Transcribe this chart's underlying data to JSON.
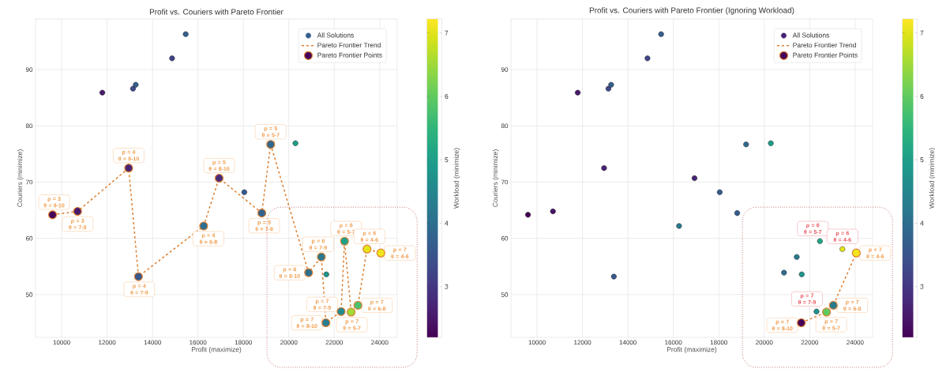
{
  "chart_data": [
    {
      "type": "scatter",
      "title": "Profit vs. Couriers with Pareto Frontier",
      "xlabel": "Profit (maximize)",
      "ylabel": "Couriers (minimize)",
      "clabel": "Workload (minimize)",
      "xlim": [
        8850,
        24770
      ],
      "ylim": [
        42.4,
        99
      ],
      "xticks": [
        10000,
        12000,
        14000,
        16000,
        18000,
        20000,
        22000,
        24000
      ],
      "yticks": [
        50,
        60,
        70,
        80,
        90
      ],
      "clim": [
        2.2,
        7.22
      ],
      "cticks": [
        3,
        4,
        5,
        6,
        7
      ],
      "grid": true,
      "legend": "top right",
      "series": [
        {
          "name": "All Solutions",
          "type": "scatter",
          "x": [
            11790,
            13140,
            13260,
            14860,
            15460,
            18040,
            20290,
            21650
          ],
          "values": [
            85.9,
            86.6,
            87.3,
            92.0,
            96.3,
            68.2,
            76.9,
            53.6
          ],
          "colors": [
            "#481a6c",
            "#3e4a89",
            "#355f8d",
            "#414487",
            "#355f8d",
            "#365c8d",
            "#1f9e89",
            "#1f958b"
          ]
        },
        {
          "name": "Pareto Frontier Trend",
          "type": "line",
          "color": "#dd8033",
          "line_style": "dashed",
          "x": [
            9600,
            10700,
            12950,
            13380,
            16250,
            16930,
            18810,
            19200,
            20870,
            21430,
            21630,
            22300,
            22450,
            22740,
            23040,
            23440,
            24050
          ],
          "values": [
            64.2,
            64.8,
            72.5,
            53.2,
            62.2,
            70.7,
            64.5,
            76.7,
            53.9,
            56.7,
            45.0,
            47.0,
            59.5,
            46.9,
            48.1,
            58.1,
            57.4
          ]
        },
        {
          "name": "Pareto Frontier Points",
          "type": "scatter",
          "x": [
            9600,
            10700,
            12950,
            13380,
            16250,
            16930,
            18810,
            19200,
            20870,
            21430,
            21630,
            22300,
            22450,
            22740,
            23040,
            23440,
            24050
          ],
          "values": [
            64.2,
            64.8,
            72.5,
            53.2,
            62.2,
            70.7,
            64.5,
            76.7,
            53.9,
            56.7,
            45.0,
            47.0,
            59.5,
            46.9,
            48.1,
            58.1,
            57.4
          ],
          "colors": [
            "#450559",
            "#481a6c",
            "#482475",
            "#38588c",
            "#2e6e8e",
            "#472c7a",
            "#33638d",
            "#31688e",
            "#2e6e8e",
            "#2a788e",
            "#297b8e",
            "#23898e",
            "#1fa188",
            "#a2da37",
            "#4ac16d",
            "#e5e419",
            "#f1e51d"
          ]
        }
      ],
      "annotations": [
        {
          "text": "ρ = 3\nθ = 8-10",
          "x": 9600,
          "y": 64.2
        },
        {
          "text": "ρ = 3\nθ = 7-9",
          "x": 10700,
          "y": 64.8
        },
        {
          "text": "ρ = 4\nθ = 8-10",
          "x": 12950,
          "y": 72.5
        },
        {
          "text": "ρ = 4\nθ = 7-9",
          "x": 13380,
          "y": 53.2
        },
        {
          "text": "ρ = 4\nθ = 6-8",
          "x": 16250,
          "y": 62.2
        },
        {
          "text": "ρ = 5\nθ = 8-10",
          "x": 16930,
          "y": 70.7
        },
        {
          "text": "ρ = 5\nθ = 7-9",
          "x": 18810,
          "y": 64.5
        },
        {
          "text": "ρ = 5\nθ = 5-7",
          "x": 19200,
          "y": 76.7
        },
        {
          "text": "ρ = 6\nθ = 8-10",
          "x": 20870,
          "y": 53.9
        },
        {
          "text": "ρ = 6\nθ = 7-9",
          "x": 21430,
          "y": 56.7
        },
        {
          "text": "ρ = 7\nθ = 8-10",
          "x": 21630,
          "y": 45.0
        },
        {
          "text": "ρ = 7\nθ = 7-9",
          "x": 22300,
          "y": 47.0
        },
        {
          "text": "ρ = 6\nθ = 5-7",
          "x": 22450,
          "y": 59.5
        },
        {
          "text": "ρ = 7\nθ = 5-7",
          "x": 22740,
          "y": 46.9
        },
        {
          "text": "ρ = 7\nθ = 6-8",
          "x": 23040,
          "y": 48.1
        },
        {
          "text": "ρ = 6\nθ = 4-6",
          "x": 23440,
          "y": 58.1
        },
        {
          "text": "ρ = 7\nθ = 4-6",
          "x": 24050,
          "y": 57.4
        }
      ]
    },
    {
      "type": "scatter",
      "title": "Profit vs. Couriers with Pareto Frontier (Ignoring Workload)",
      "xlabel": "Profit (maximize)",
      "ylabel": "Couriers (minimize)",
      "clabel": "Workload (minimize)",
      "xlim": [
        8850,
        24770
      ],
      "ylim": [
        42.4,
        99
      ],
      "xticks": [
        10000,
        12000,
        14000,
        16000,
        18000,
        20000,
        22000,
        24000
      ],
      "yticks": [
        50,
        60,
        70,
        80,
        90
      ],
      "clim": [
        2.2,
        7.22
      ],
      "cticks": [
        3,
        4,
        5,
        6,
        7
      ],
      "grid": true,
      "legend": "top right",
      "series": [
        {
          "name": "All Solutions",
          "type": "scatter",
          "x": [
            9600,
            10700,
            11790,
            12950,
            13140,
            13260,
            13380,
            14860,
            15460,
            16250,
            16930,
            18040,
            18810,
            19200,
            20290,
            20870,
            21430,
            21650,
            22300,
            22450,
            23440
          ],
          "values": [
            64.2,
            64.8,
            85.9,
            72.5,
            86.6,
            87.3,
            53.2,
            92.0,
            96.3,
            62.2,
            70.7,
            68.2,
            64.5,
            76.7,
            76.9,
            53.9,
            56.7,
            53.6,
            47.0,
            59.5,
            58.1
          ],
          "colors": [
            "#440154",
            "#471365",
            "#481a6c",
            "#482475",
            "#3e4a89",
            "#355f8d",
            "#38588c",
            "#414487",
            "#355f8d",
            "#2a788e",
            "#482475",
            "#365c8d",
            "#365c8d",
            "#31688e",
            "#1f9e89",
            "#2e6e8e",
            "#297b8e",
            "#1f958b",
            "#21918c",
            "#22a884",
            "#e5e419"
          ]
        },
        {
          "name": "Pareto Frontier Trend",
          "type": "line",
          "color": "#dd8033",
          "line_style": "dashed",
          "x": [
            21630,
            22740,
            23040,
            24050
          ],
          "values": [
            45.0,
            46.9,
            48.1,
            57.4
          ]
        },
        {
          "name": "Pareto Frontier Points",
          "type": "scatter",
          "x": [
            21630,
            22740,
            23040,
            24050
          ],
          "values": [
            45.0,
            46.9,
            48.1,
            57.4
          ],
          "colors": [
            "#450559",
            "#60ca60",
            "#297b8e",
            "#f1e51d"
          ]
        }
      ],
      "annotations": [
        {
          "text": "ρ = 6\nθ = 5-7",
          "x": 22450,
          "y": 59.5
        },
        {
          "text": "ρ = 6\nθ = 4-6",
          "x": 23440,
          "y": 58.1
        },
        {
          "text": "ρ = 7\nθ = 4-6",
          "x": 24050,
          "y": 57.4
        },
        {
          "text": "ρ = 7\nθ = 7-9",
          "x": 22300,
          "y": 47.0
        },
        {
          "text": "ρ = 7\nθ = 6-8",
          "x": 23040,
          "y": 48.1
        },
        {
          "text": "ρ = 7\nθ = 8-10",
          "x": 21630,
          "y": 45.0
        },
        {
          "text": "ρ = 7\nθ = 5-7",
          "x": 22740,
          "y": 46.9
        }
      ]
    }
  ]
}
